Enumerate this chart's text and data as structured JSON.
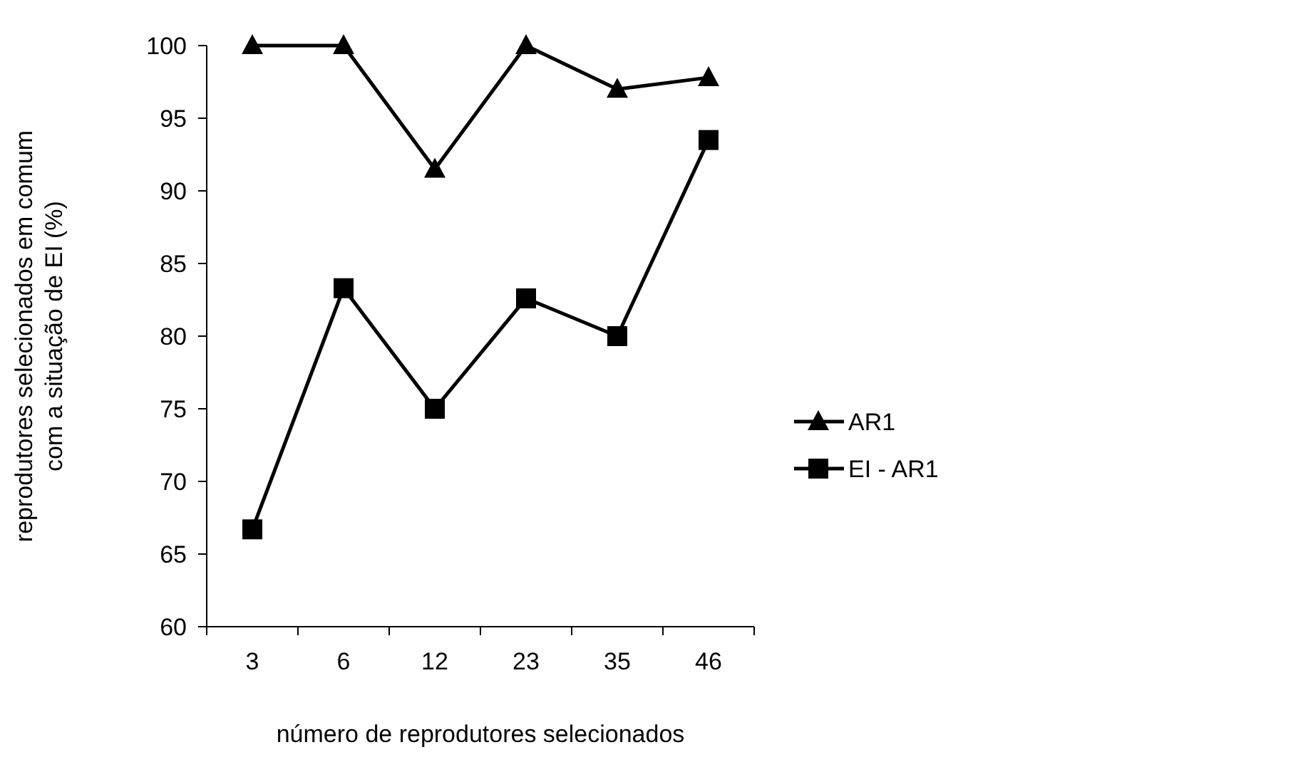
{
  "chart_data": {
    "type": "line",
    "xlabel": "número de reprodutores selecionados",
    "ylabel": "reprodutores selecionados em comum\ncom a situação de EI (%)",
    "categories": [
      "3",
      "6",
      "12",
      "23",
      "35",
      "46"
    ],
    "series": [
      {
        "name": "AR1",
        "color": "#000000",
        "marker": "triangle",
        "values": [
          100,
          100,
          91.5,
          100,
          97,
          97.8
        ]
      },
      {
        "name": "EI - AR1",
        "color": "#000000",
        "marker": "square",
        "values": [
          66.7,
          83.3,
          75,
          82.6,
          80,
          93.5
        ]
      }
    ],
    "ylim": [
      60,
      100
    ],
    "yticks": [
      60,
      65,
      70,
      75,
      80,
      85,
      90,
      95,
      100
    ],
    "grid": false,
    "legend": "right",
    "line_style": "solid"
  }
}
